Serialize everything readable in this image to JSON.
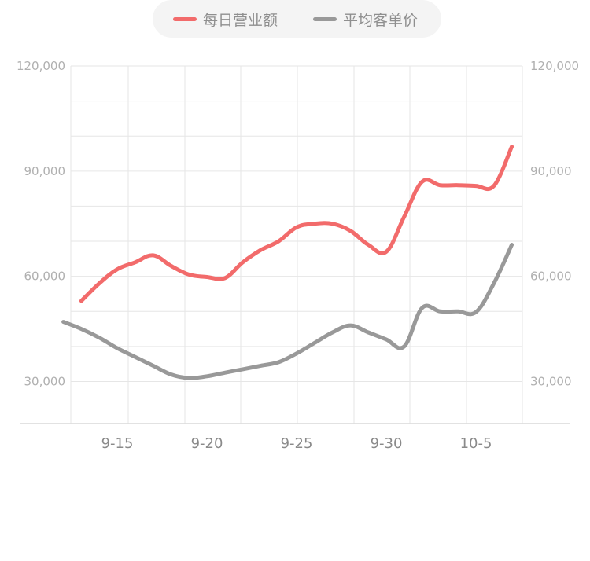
{
  "legend": {
    "revenue_label": "每日营业额",
    "avg_label": "平均客单价"
  },
  "colors": {
    "revenue": "#f26b6b",
    "avg": "#999999",
    "grid": "#e6e6e6",
    "axis": "#d9d9d9"
  },
  "chart_data": {
    "type": "line",
    "title": "",
    "xlabel": "",
    "ylabel": "",
    "x_ticks": [
      "9-15",
      "9-20",
      "9-25",
      "9-30",
      "10-5"
    ],
    "y_ticks_left": [
      "120,000",
      "90,000",
      "60,000",
      "30,000"
    ],
    "y_ticks_right": [
      "120,000",
      "90,000",
      "60,000",
      "30,000"
    ],
    "ylim": [
      18000,
      120000
    ],
    "grid": true,
    "legend_position": "top-center",
    "series": [
      {
        "name": "每日营业额",
        "x": [
          "9-13",
          "9-14",
          "9-15",
          "9-16",
          "9-17",
          "9-18",
          "9-19",
          "9-20",
          "9-21",
          "9-22",
          "9-23",
          "9-24",
          "9-25",
          "9-26",
          "9-27",
          "9-28",
          "9-29",
          "9-30",
          "10-1",
          "10-2",
          "10-3",
          "10-4",
          "10-5",
          "10-6",
          "10-7"
        ],
        "values": [
          53000,
          58000,
          62000,
          64000,
          66000,
          63000,
          60500,
          59800,
          59500,
          64000,
          67500,
          70000,
          74000,
          75000,
          75000,
          73000,
          69000,
          67000,
          77000,
          87000,
          86000,
          86000,
          85800,
          85800,
          97000
        ]
      },
      {
        "name": "平均客单价",
        "x": [
          "9-12",
          "9-13",
          "9-14",
          "9-15",
          "9-16",
          "9-17",
          "9-18",
          "9-19",
          "9-20",
          "9-21",
          "9-22",
          "9-23",
          "9-24",
          "9-25",
          "9-26",
          "9-27",
          "9-28",
          "9-29",
          "9-30",
          "10-1",
          "10-2",
          "10-3",
          "10-4",
          "10-5",
          "10-6",
          "10-7"
        ],
        "values": [
          47000,
          45000,
          42500,
          39500,
          37000,
          34500,
          32000,
          31000,
          31500,
          32500,
          33500,
          34500,
          35500,
          38000,
          41000,
          44000,
          46000,
          44000,
          42000,
          40000,
          51000,
          50000,
          50000,
          49800,
          58000,
          69000
        ]
      }
    ]
  }
}
